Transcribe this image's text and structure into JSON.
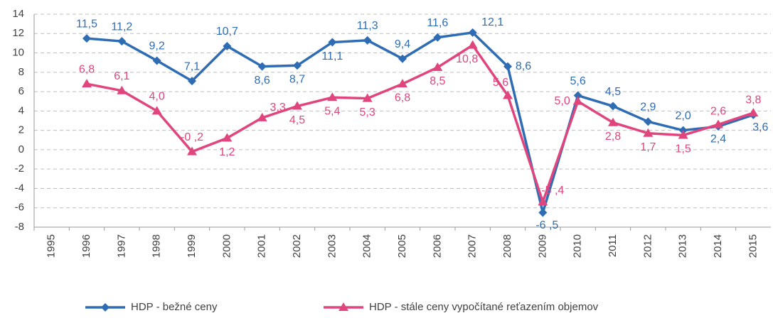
{
  "chart_data": {
    "type": "line",
    "categories": [
      "1995",
      "1996",
      "1997",
      "1998",
      "1999",
      "2000",
      "2001",
      "2002",
      "2003",
      "2004",
      "2005",
      "2006",
      "2007",
      "2008",
      "2009",
      "2010",
      "2011",
      "2012",
      "2013",
      "2014",
      "2015"
    ],
    "series": [
      {
        "name": "HDP - bežné ceny",
        "color": "#2e6db4",
        "marker": "diamond",
        "values": [
          null,
          11.5,
          11.2,
          9.2,
          7.1,
          10.7,
          8.6,
          8.7,
          11.1,
          11.3,
          9.4,
          11.6,
          12.1,
          8.6,
          -6.5,
          5.6,
          4.5,
          2.9,
          2.0,
          2.4,
          3.6
        ],
        "value_labels": [
          null,
          "11,5",
          "11,2",
          "9,2",
          "7,1",
          "10,7",
          "8,6",
          "8,7",
          "11,1",
          "11,3",
          "9,4",
          "11,6",
          "12,1",
          "8,6",
          "-6 ,5",
          "5,6",
          "4,5",
          "2,9",
          "2,0",
          "2,4",
          "3,6"
        ]
      },
      {
        "name": "HDP - stále ceny vypočítané reťazením objemov",
        "color": "#e0457e",
        "marker": "triangle",
        "values": [
          null,
          6.8,
          6.1,
          4.0,
          -0.2,
          1.2,
          3.3,
          4.5,
          5.4,
          5.3,
          6.8,
          8.5,
          10.8,
          5.6,
          -5.4,
          5.0,
          2.8,
          1.7,
          1.5,
          2.6,
          3.8
        ],
        "value_labels": [
          null,
          "6,8",
          "6,1",
          "4,0",
          "-0 ,2",
          "1,2",
          "3,3",
          "4,5",
          "5,4",
          "5,3",
          "6,8",
          "8,5",
          "10,8",
          "5,6",
          "-5 ,4",
          "5,0",
          "2,8",
          "1,7",
          "1,5",
          "2,6",
          "3,8"
        ]
      }
    ],
    "ylim": [
      -8,
      14
    ],
    "yticks": [
      -8,
      -6,
      -4,
      -2,
      0,
      2,
      4,
      6,
      8,
      10,
      12,
      14
    ],
    "grid": true,
    "legend": "bottom"
  }
}
